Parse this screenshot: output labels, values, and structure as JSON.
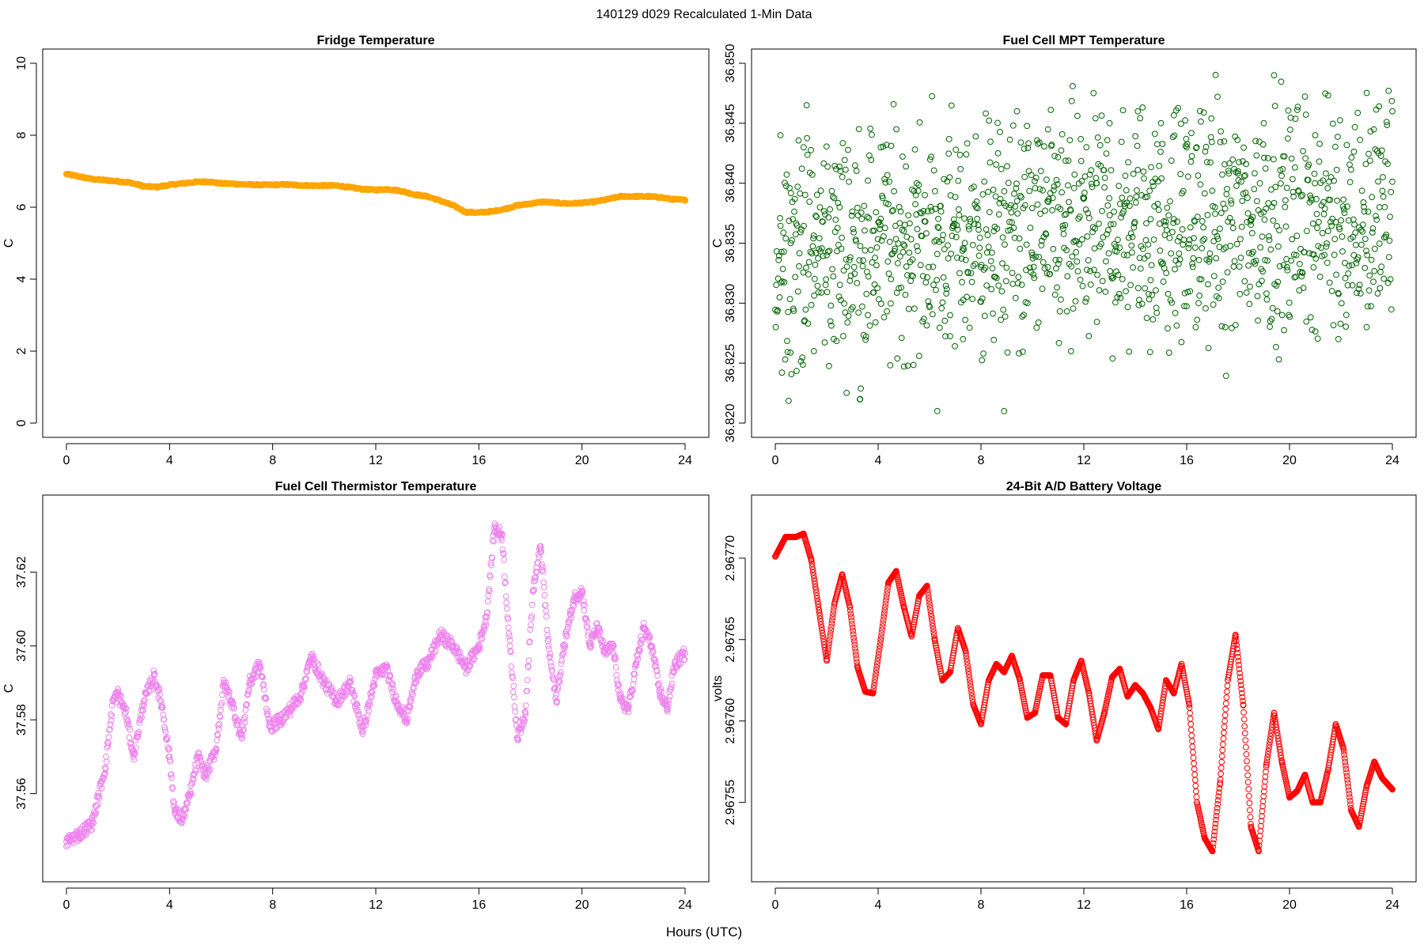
{
  "figure": {
    "title": "140129   d029   Recalculated 1-Min Data",
    "xlabel": "Hours (UTC)"
  },
  "chart_data": [
    {
      "type": "scatter",
      "title": "Fridge Temperature",
      "xlabel": "",
      "ylabel": "C",
      "xlim": [
        0,
        24
      ],
      "ylim": [
        0,
        10
      ],
      "xticks": [
        0,
        4,
        8,
        12,
        16,
        20,
        24
      ],
      "yticks": [
        0,
        2,
        4,
        6,
        8,
        10
      ],
      "color": "#FFA500",
      "marker": "filled-circle",
      "series": [
        {
          "x": [
            0,
            0.5,
            1,
            1.5,
            2,
            2.5,
            3,
            3.5,
            4,
            4.5,
            5,
            5.5,
            6,
            6.5,
            7,
            7.5,
            8,
            8.5,
            9,
            9.5,
            10,
            10.5,
            11,
            11.5,
            12,
            12.5,
            13,
            13.5,
            14,
            14.5,
            15,
            15.5,
            16,
            16.5,
            17,
            17.5,
            18,
            18.5,
            19,
            19.5,
            20,
            20.5,
            21,
            21.5,
            22,
            22.5,
            23,
            23.5,
            24
          ],
          "y": [
            6.92,
            6.85,
            6.78,
            6.75,
            6.72,
            6.68,
            6.58,
            6.56,
            6.62,
            6.66,
            6.7,
            6.71,
            6.66,
            6.65,
            6.63,
            6.62,
            6.62,
            6.63,
            6.61,
            6.6,
            6.6,
            6.6,
            6.55,
            6.5,
            6.48,
            6.5,
            6.45,
            6.35,
            6.3,
            6.18,
            6.05,
            5.86,
            5.85,
            5.88,
            5.95,
            6.05,
            6.1,
            6.15,
            6.12,
            6.1,
            6.12,
            6.15,
            6.22,
            6.3,
            6.3,
            6.3,
            6.28,
            6.22,
            6.2
          ]
        }
      ]
    },
    {
      "type": "scatter",
      "title": "Fuel Cell MPT Temperature",
      "xlabel": "",
      "ylabel": "C",
      "xlim": [
        0,
        24
      ],
      "ylim": [
        36.82,
        36.85
      ],
      "xticks": [
        0,
        4,
        8,
        12,
        16,
        20,
        24
      ],
      "yticks": [
        "36.820",
        "36.825",
        "36.830",
        "36.835",
        "36.840",
        "36.845",
        "36.850"
      ],
      "color": "#006400",
      "marker": "open-circle",
      "series": [
        {
          "x": [
            0.2,
            0.6,
            1.1,
            1.5,
            2.0,
            2.5,
            3.3,
            3.6,
            4.1,
            4.5,
            5.0,
            5.5,
            6.3,
            6.8,
            7.3,
            8.0,
            8.5,
            8.9,
            9.4,
            10.0,
            10.6,
            11.0,
            11.5,
            12.1,
            12.5,
            13.0,
            13.5,
            14.1,
            14.6,
            15.0,
            15.5,
            16.0,
            16.5,
            17.1,
            17.5,
            18.0,
            18.5,
            19.0,
            19.4,
            19.9,
            20.5,
            21.0,
            21.5,
            21.9,
            22.5,
            23.0,
            23.5,
            24.0
          ],
          "y": [
            36.844,
            36.835,
            36.843,
            36.826,
            36.834,
            36.838,
            36.822,
            36.829,
            36.843,
            36.832,
            36.836,
            36.84,
            36.821,
            36.829,
            36.827,
            36.833,
            36.836,
            36.821,
            36.846,
            36.834,
            36.833,
            36.838,
            36.826,
            36.843,
            36.84,
            36.845,
            36.832,
            36.846,
            36.837,
            36.845,
            36.837,
            36.843,
            36.832,
            36.838,
            36.828,
            36.841,
            36.837,
            36.845,
            36.849,
            36.833,
            36.839,
            36.844,
            36.836,
            36.827,
            36.834,
            36.828,
            36.838,
            36.846
          ]
        }
      ]
    },
    {
      "type": "scatter",
      "title": "Fuel Cell Thermistor Temperature",
      "xlabel": "",
      "ylabel": "C",
      "xlim": [
        0,
        24
      ],
      "ylim": [
        37.54,
        37.637
      ],
      "xticks": [
        0,
        4,
        8,
        12,
        16,
        20,
        24
      ],
      "yticks": [
        "37.56",
        "37.58",
        "37.60",
        "37.62"
      ],
      "color": "#EE82EE",
      "marker": "open-circle",
      "series": [
        {
          "x": [
            0,
            0.5,
            1,
            1.5,
            1.8,
            2,
            2.3,
            2.6,
            3,
            3.4,
            3.7,
            4,
            4.2,
            4.5,
            4.8,
            5.1,
            5.4,
            5.8,
            6.1,
            6.4,
            6.8,
            7.1,
            7.5,
            7.9,
            8.3,
            8.7,
            9.1,
            9.5,
            10,
            10.5,
            11,
            11.5,
            12,
            12.4,
            12.8,
            13.2,
            13.6,
            14,
            14.5,
            15,
            15.5,
            16,
            16.3,
            16.6,
            16.9,
            17.2,
            17.5,
            17.8,
            18.1,
            18.4,
            18.7,
            19,
            19.3,
            19.7,
            20,
            20.3,
            20.6,
            20.9,
            21.2,
            21.5,
            21.8,
            22.1,
            22.4,
            22.7,
            23,
            23.3,
            23.6,
            24
          ],
          "y": [
            37.547,
            37.549,
            37.552,
            37.567,
            37.585,
            37.587,
            37.582,
            37.57,
            37.585,
            37.592,
            37.584,
            37.57,
            37.555,
            37.553,
            37.56,
            37.57,
            37.565,
            37.572,
            37.59,
            37.585,
            37.575,
            37.59,
            37.595,
            37.578,
            37.58,
            37.583,
            37.587,
            37.597,
            37.59,
            37.585,
            37.59,
            37.577,
            37.592,
            37.594,
            37.585,
            37.58,
            37.593,
            37.595,
            37.603,
            37.6,
            37.594,
            37.6,
            37.608,
            37.632,
            37.63,
            37.6,
            37.575,
            37.582,
            37.615,
            37.627,
            37.6,
            37.585,
            37.6,
            37.613,
            37.615,
            37.6,
            37.605,
            37.598,
            37.6,
            37.585,
            37.583,
            37.595,
            37.605,
            37.6,
            37.588,
            37.583,
            37.595,
            37.598
          ]
        }
      ]
    },
    {
      "type": "scatter",
      "title": "24-Bit A/D Battery Voltage",
      "xlabel": "",
      "ylabel": "volts",
      "xlim": [
        0,
        24
      ],
      "ylim": [
        2.96751,
        2.96773
      ],
      "xticks": [
        0,
        4,
        8,
        12,
        16,
        20,
        24
      ],
      "yticks": [
        "2.96755",
        "2.96760",
        "2.96765",
        "2.96770"
      ],
      "color": "#FF0000",
      "marker": "open-circle",
      "series": [
        {
          "x": [
            0,
            0.4,
            0.8,
            1.1,
            1.4,
            1.7,
            2.0,
            2.3,
            2.6,
            2.9,
            3.2,
            3.5,
            3.8,
            4.1,
            4.4,
            4.7,
            5.0,
            5.3,
            5.6,
            5.9,
            6.2,
            6.5,
            6.8,
            7.1,
            7.4,
            7.7,
            8.0,
            8.3,
            8.6,
            8.9,
            9.2,
            9.5,
            9.8,
            10.1,
            10.4,
            10.7,
            11.0,
            11.3,
            11.6,
            11.9,
            12.2,
            12.5,
            12.8,
            13.1,
            13.4,
            13.7,
            14.0,
            14.3,
            14.6,
            14.9,
            15.2,
            15.5,
            15.8,
            16.1,
            16.4,
            16.7,
            17.0,
            17.3,
            17.6,
            17.9,
            18.2,
            18.5,
            18.8,
            19.1,
            19.4,
            19.7,
            20.0,
            20.3,
            20.6,
            20.9,
            21.2,
            21.5,
            21.8,
            22.1,
            22.4,
            22.7,
            23.0,
            23.3,
            23.6,
            24.0
          ],
          "y": [
            2.967701,
            2.967713,
            2.967713,
            2.967715,
            2.967699,
            2.967668,
            2.967637,
            2.967672,
            2.96769,
            2.96767,
            2.967633,
            2.967618,
            2.967617,
            2.96765,
            2.967685,
            2.967692,
            2.96767,
            2.967652,
            2.967677,
            2.967683,
            2.96765,
            2.967625,
            2.96763,
            2.967657,
            2.967643,
            2.96761,
            2.967598,
            2.967625,
            2.967635,
            2.96763,
            2.96764,
            2.967626,
            2.967602,
            2.967605,
            2.967628,
            2.967628,
            2.967602,
            2.967598,
            2.967625,
            2.967637,
            2.967617,
            2.967588,
            2.967605,
            2.967627,
            2.967632,
            2.967615,
            2.967622,
            2.967617,
            2.967608,
            2.967595,
            2.967625,
            2.967617,
            2.967635,
            2.96761,
            2.96755,
            2.967528,
            2.96752,
            2.967562,
            2.967625,
            2.967653,
            2.96761,
            2.967535,
            2.96752,
            2.967573,
            2.967605,
            2.967575,
            2.967553,
            2.967557,
            2.967567,
            2.96755,
            2.96755,
            2.96757,
            2.967598,
            2.967583,
            2.967545,
            2.967535,
            2.96756,
            2.967575,
            2.967565,
            2.967558
          ]
        }
      ]
    }
  ]
}
